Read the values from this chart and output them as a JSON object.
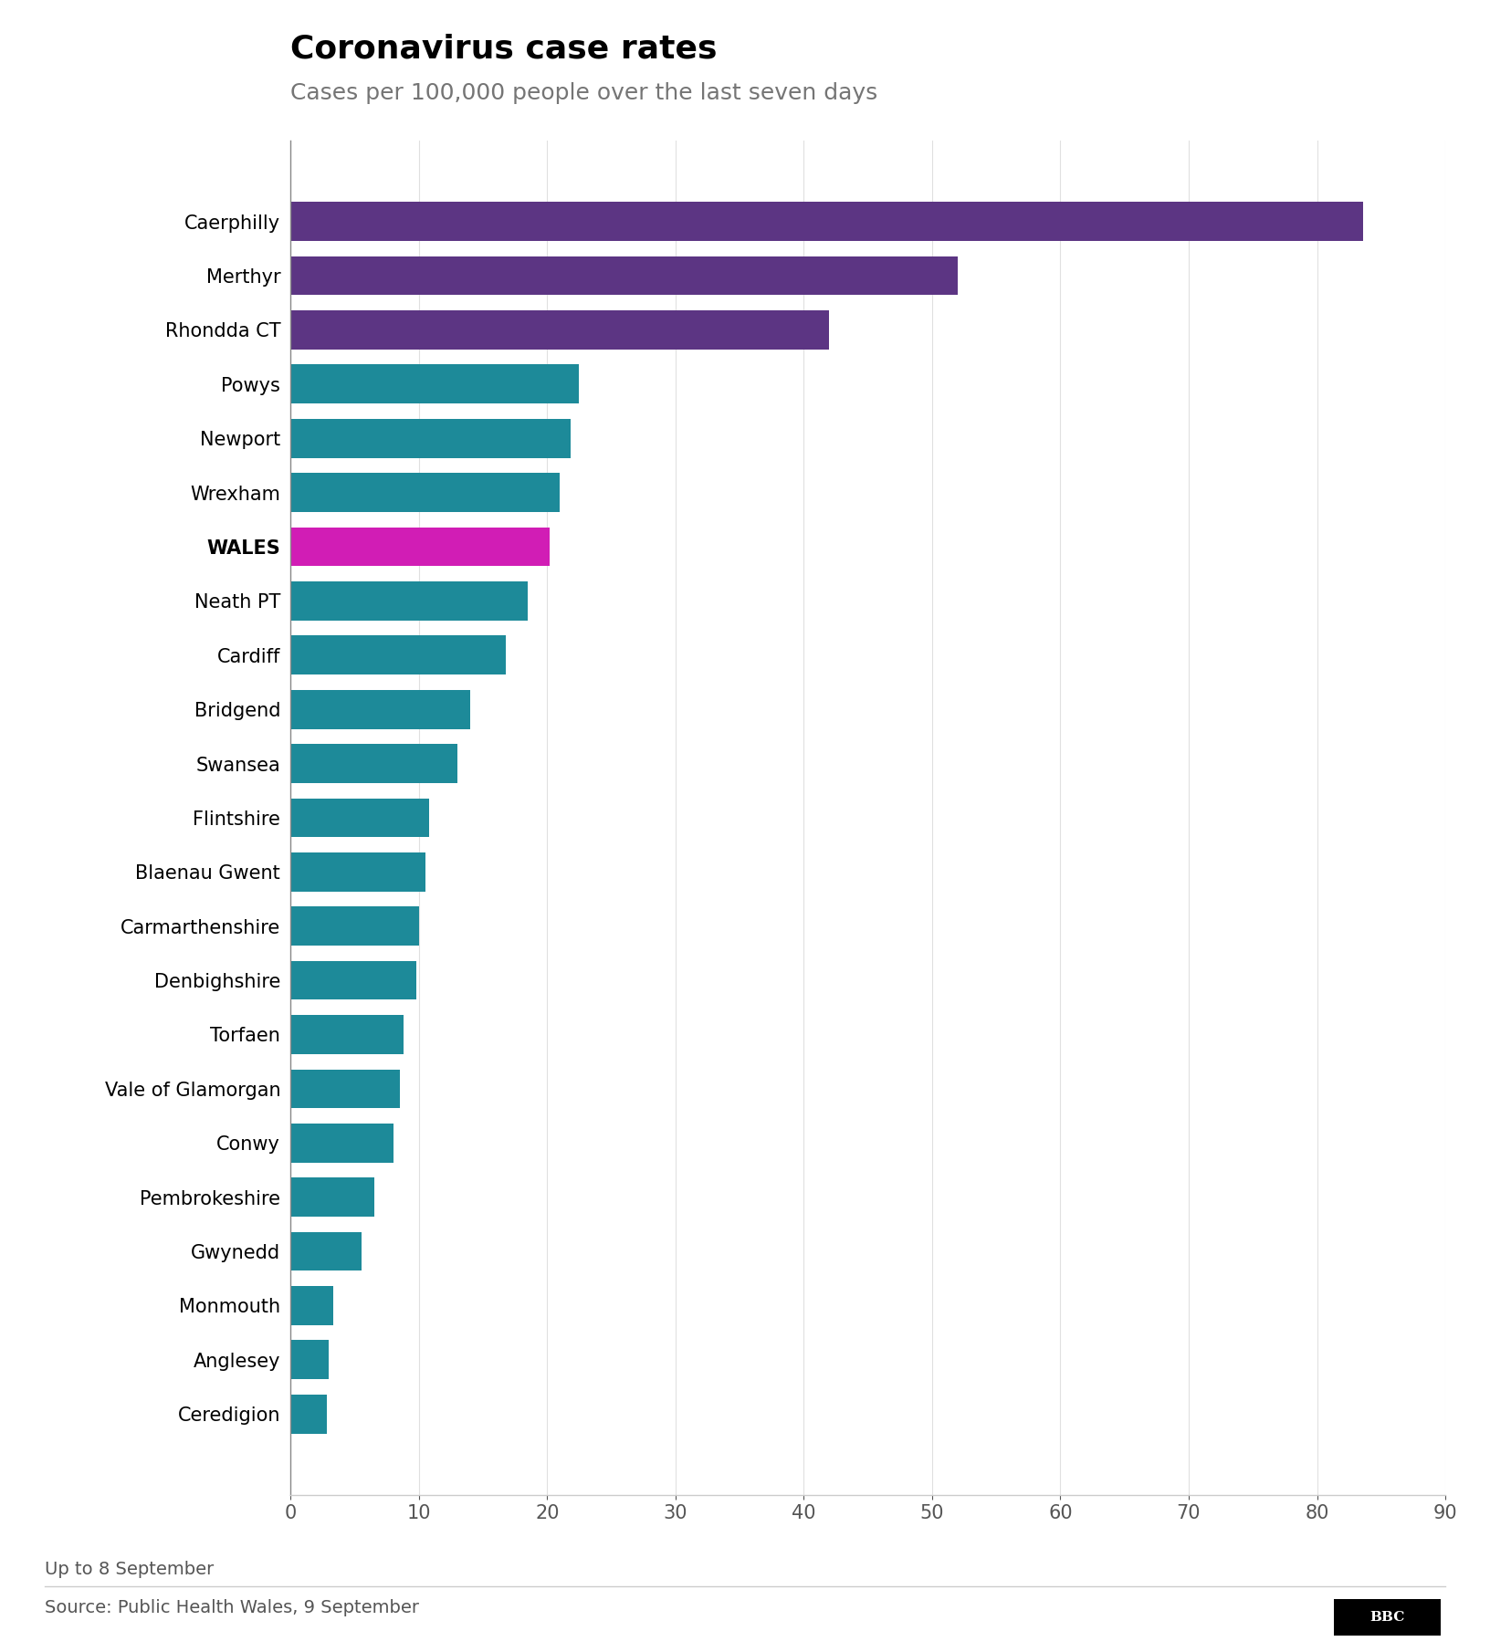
{
  "title": "Coronavirus case rates",
  "subtitle": "Cases per 100,000 people over the last seven days",
  "footnote": "Up to 8 September",
  "source": "Source: Public Health Wales, 9 September",
  "categories": [
    "Caerphilly",
    "Merthyr",
    "Rhondda CT",
    "Powys",
    "Newport",
    "Wrexham",
    "WALES",
    "Neath PT",
    "Cardiff",
    "Bridgend",
    "Swansea",
    "Flintshire",
    "Blaenau Gwent",
    "Carmarthenshire",
    "Denbighshire",
    "Torfaen",
    "Vale of Glamorgan",
    "Conwy",
    "Pembrokeshire",
    "Gwynedd",
    "Monmouth",
    "Anglesey",
    "Ceredigion"
  ],
  "values": [
    83.6,
    52.0,
    42.0,
    22.5,
    21.8,
    21.0,
    20.2,
    18.5,
    16.8,
    14.0,
    13.0,
    10.8,
    10.5,
    10.0,
    9.8,
    8.8,
    8.5,
    8.0,
    6.5,
    5.5,
    3.3,
    3.0,
    2.8
  ],
  "colors": [
    "#5c3583",
    "#5c3583",
    "#5c3583",
    "#1d8a99",
    "#1d8a99",
    "#1d8a99",
    "#d11db5",
    "#1d8a99",
    "#1d8a99",
    "#1d8a99",
    "#1d8a99",
    "#1d8a99",
    "#1d8a99",
    "#1d8a99",
    "#1d8a99",
    "#1d8a99",
    "#1d8a99",
    "#1d8a99",
    "#1d8a99",
    "#1d8a99",
    "#1d8a99",
    "#1d8a99",
    "#1d8a99"
  ],
  "xlim": [
    0,
    90
  ],
  "xticks": [
    0,
    10,
    20,
    30,
    40,
    50,
    60,
    70,
    80,
    90
  ],
  "title_fontsize": 26,
  "subtitle_fontsize": 18,
  "tick_fontsize": 15,
  "label_fontsize": 15,
  "footnote_fontsize": 14,
  "source_fontsize": 14,
  "bar_height": 0.72,
  "background_color": "#ffffff",
  "title_color": "#000000",
  "subtitle_color": "#757575",
  "tick_color": "#555555",
  "label_color": "#000000",
  "footnote_color": "#555555",
  "source_color": "#555555",
  "spine_color": "#cccccc",
  "grid_color": "#e0e0e0"
}
